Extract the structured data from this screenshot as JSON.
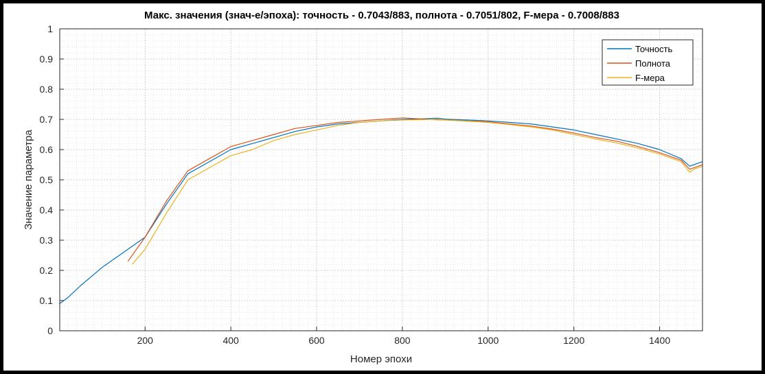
{
  "chart_data": {
    "type": "line",
    "title": "Макс. значения (знач-е/эпоха): точность - 0.7043/883, полнота - 0.7051/802, F-мера - 0.7008/883",
    "xlabel": "Номер эпохи",
    "ylabel": "Значение параметра",
    "xlim": [
      1,
      1500
    ],
    "ylim": [
      0,
      1
    ],
    "x_ticks": [
      "200",
      "400",
      "600",
      "800",
      "1000",
      "1200",
      "1400"
    ],
    "y_ticks": [
      "0",
      "0.1",
      "0.2",
      "0.3",
      "0.4",
      "0.5",
      "0.6",
      "0.7",
      "0.8",
      "0.9",
      "1"
    ],
    "grid": true,
    "minor_grid": true,
    "legend_position": "top-right",
    "series": [
      {
        "name": "Точность",
        "color": "#0072BD",
        "x": [
          1,
          20,
          50,
          100,
          150,
          200,
          250,
          300,
          350,
          400,
          450,
          500,
          550,
          600,
          650,
          700,
          750,
          800,
          850,
          883,
          900,
          950,
          1000,
          1050,
          1100,
          1150,
          1200,
          1250,
          1300,
          1350,
          1400,
          1450,
          1470,
          1480,
          1500
        ],
        "y": [
          0.09,
          0.11,
          0.15,
          0.21,
          0.26,
          0.31,
          0.42,
          0.52,
          0.56,
          0.6,
          0.62,
          0.64,
          0.66,
          0.675,
          0.685,
          0.69,
          0.695,
          0.7,
          0.702,
          0.704,
          0.701,
          0.698,
          0.695,
          0.69,
          0.685,
          0.675,
          0.665,
          0.65,
          0.635,
          0.62,
          0.6,
          0.57,
          0.545,
          0.55,
          0.56
        ]
      },
      {
        "name": "Полнота",
        "color": "#D95319",
        "x": [
          160,
          200,
          250,
          300,
          350,
          400,
          450,
          500,
          550,
          600,
          650,
          700,
          750,
          802,
          850,
          900,
          950,
          1000,
          1050,
          1100,
          1150,
          1200,
          1250,
          1300,
          1350,
          1400,
          1450,
          1470,
          1480,
          1500
        ],
        "y": [
          0.23,
          0.31,
          0.43,
          0.53,
          0.57,
          0.61,
          0.63,
          0.65,
          0.67,
          0.68,
          0.69,
          0.695,
          0.7,
          0.705,
          0.701,
          0.698,
          0.695,
          0.692,
          0.685,
          0.678,
          0.668,
          0.655,
          0.64,
          0.628,
          0.61,
          0.59,
          0.565,
          0.535,
          0.54,
          0.55
        ]
      },
      {
        "name": "F-мера",
        "color": "#EDB120",
        "x": [
          170,
          200,
          250,
          300,
          350,
          400,
          450,
          500,
          550,
          600,
          650,
          700,
          750,
          800,
          850,
          883,
          900,
          950,
          1000,
          1050,
          1100,
          1150,
          1200,
          1250,
          1300,
          1350,
          1400,
          1450,
          1470,
          1480,
          1500
        ],
        "y": [
          0.22,
          0.27,
          0.39,
          0.5,
          0.54,
          0.58,
          0.6,
          0.63,
          0.65,
          0.665,
          0.68,
          0.69,
          0.695,
          0.698,
          0.699,
          0.7008,
          0.698,
          0.694,
          0.69,
          0.683,
          0.675,
          0.665,
          0.65,
          0.635,
          0.622,
          0.605,
          0.585,
          0.56,
          0.525,
          0.535,
          0.545
        ]
      }
    ]
  }
}
